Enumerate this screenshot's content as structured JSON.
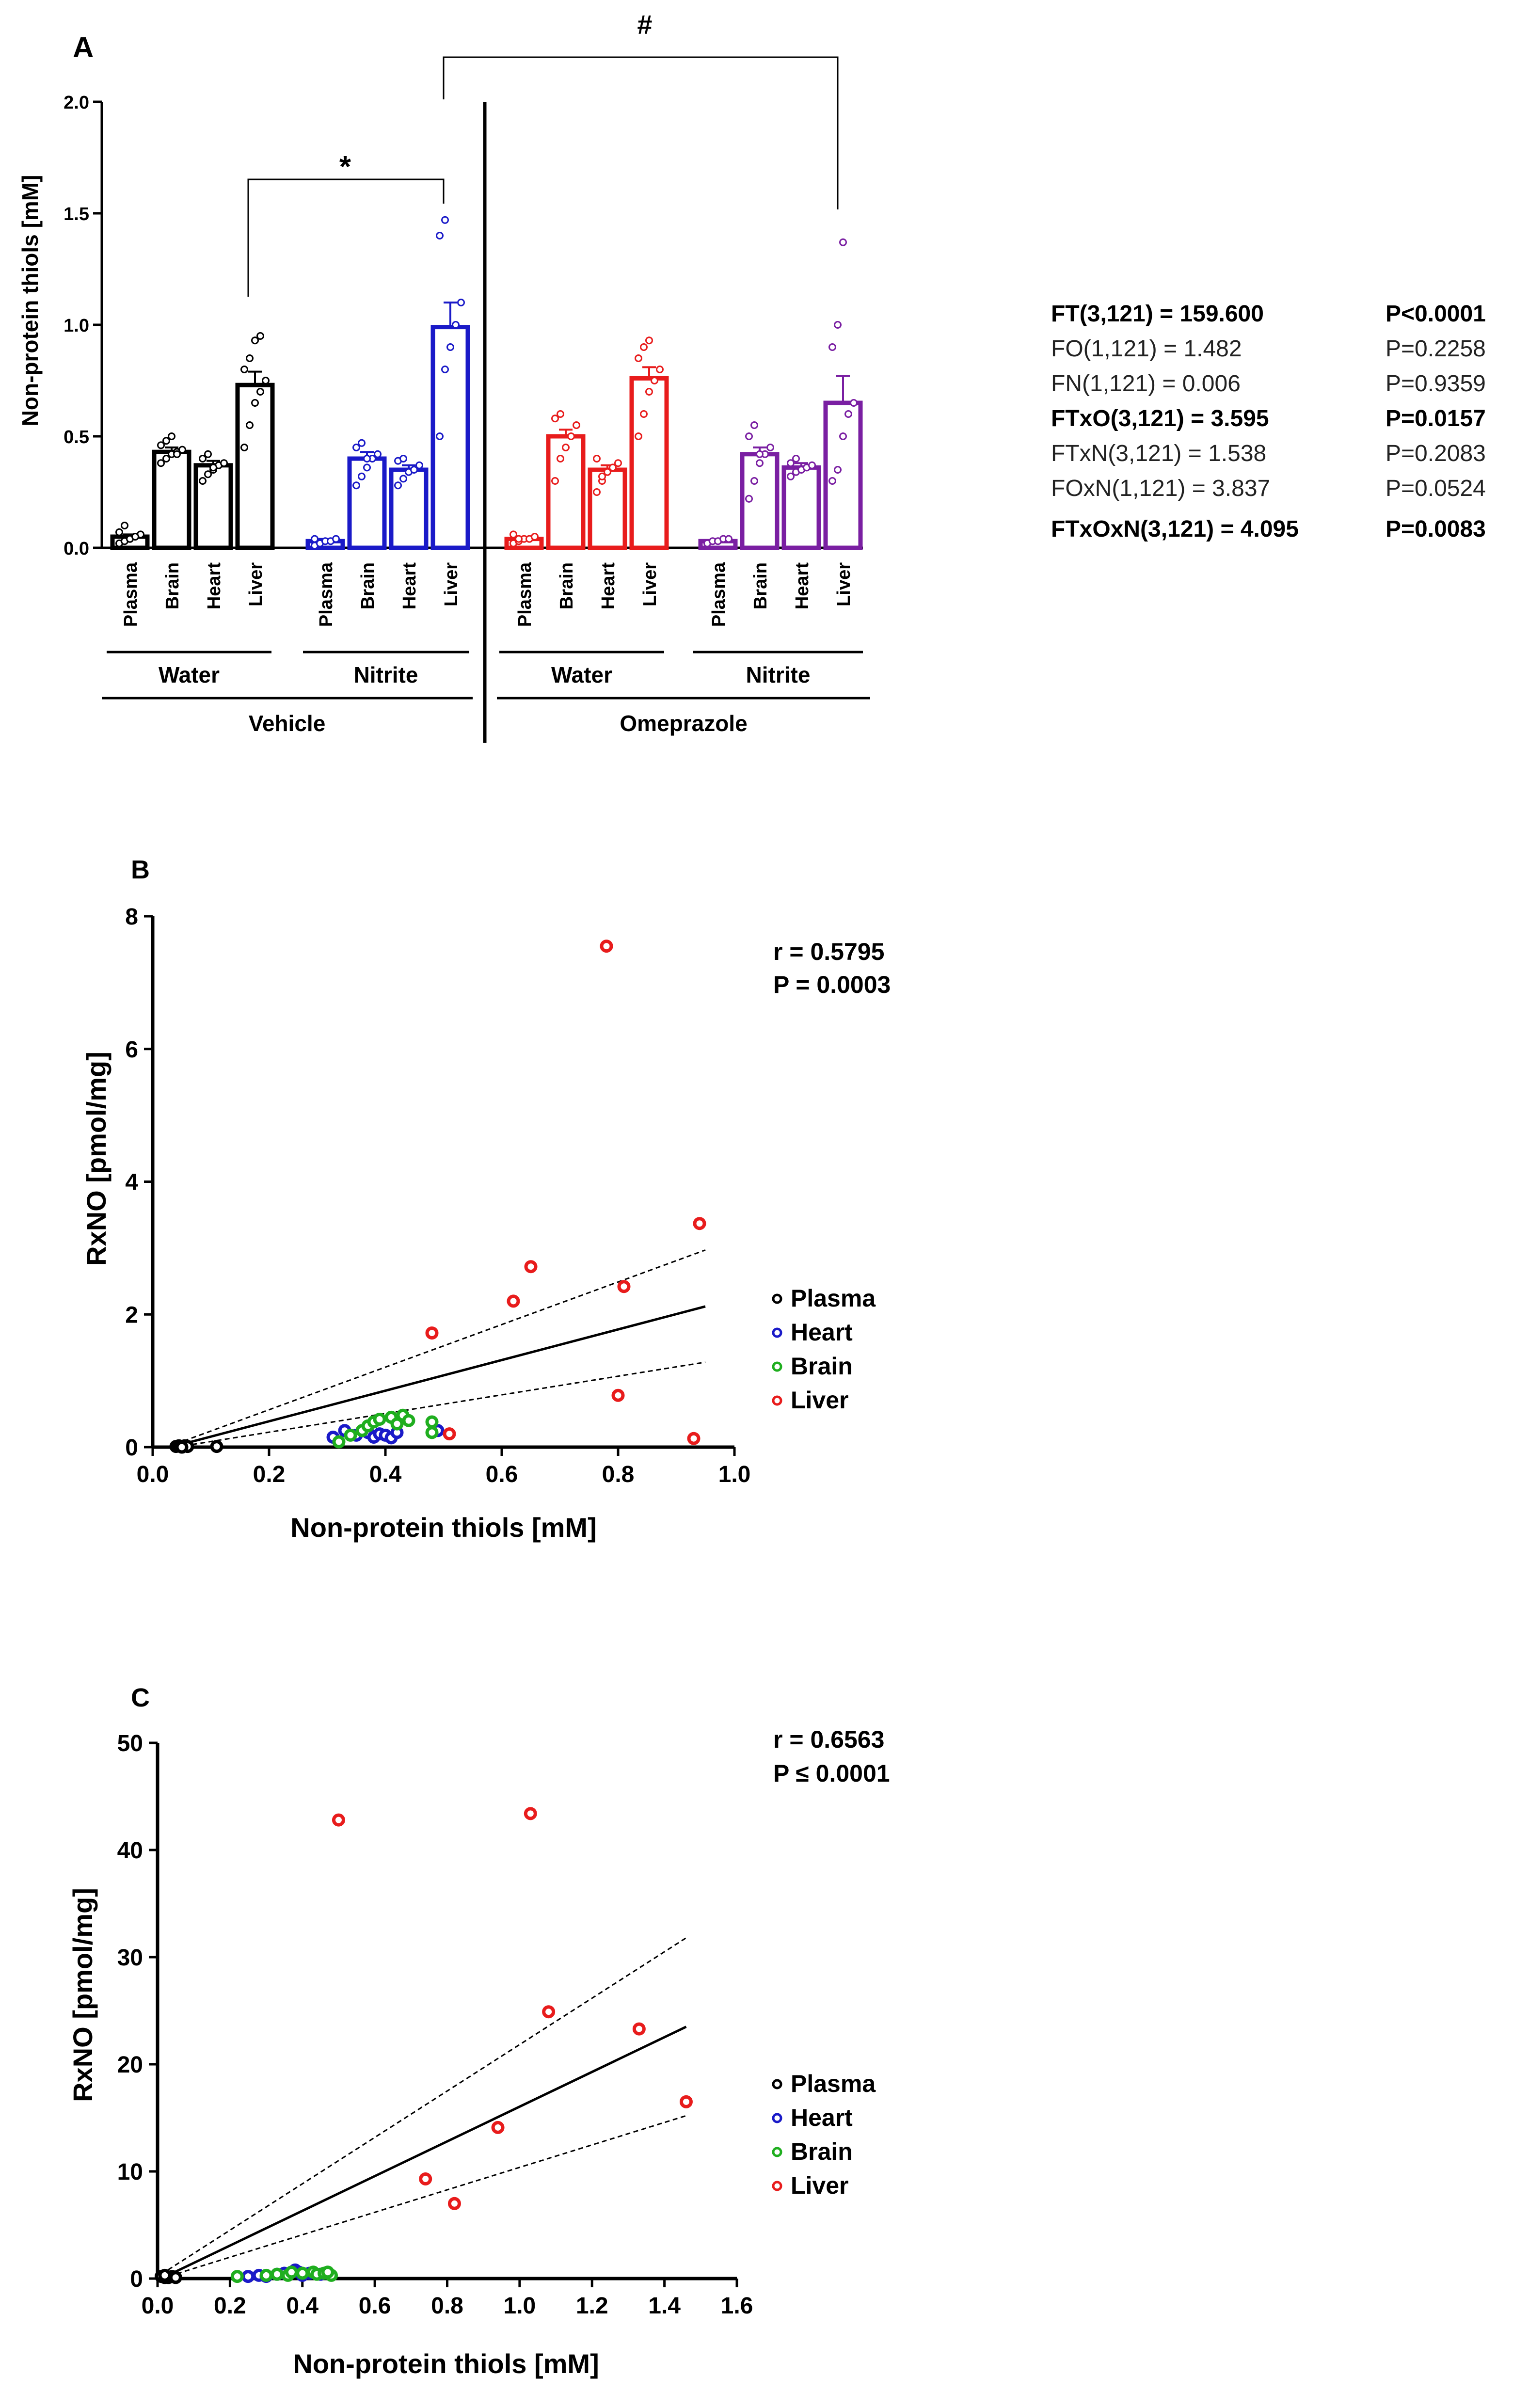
{
  "panelA": {
    "label": "A",
    "ylabel": "Non-protein thiols [mM]",
    "yticks": [
      "0.0",
      "0.5",
      "1.0",
      "1.5",
      "2.0"
    ],
    "ylim": [
      0,
      2.0
    ],
    "tissues": [
      "Plasma",
      "Brain",
      "Heart",
      "Liver"
    ],
    "groups": [
      {
        "name": "vehicle-water",
        "color": "#000000",
        "means": [
          0.05,
          0.43,
          0.37,
          0.73
        ],
        "sem": [
          0.01,
          0.02,
          0.02,
          0.06
        ],
        "points": [
          [
            0.02,
            0.03,
            0.04,
            0.05,
            0.06,
            0.07,
            0.1,
            0.04,
            0.05
          ],
          [
            0.38,
            0.4,
            0.42,
            0.43,
            0.44,
            0.46,
            0.48,
            0.5,
            0.42
          ],
          [
            0.3,
            0.33,
            0.35,
            0.37,
            0.38,
            0.4,
            0.42,
            0.36
          ],
          [
            0.45,
            0.55,
            0.65,
            0.7,
            0.75,
            0.8,
            0.85,
            0.93,
            0.95
          ]
        ]
      },
      {
        "name": "vehicle-nitrite",
        "color": "#1a1ac8",
        "means": [
          0.03,
          0.4,
          0.35,
          0.99
        ],
        "sem": [
          0.01,
          0.03,
          0.02,
          0.11
        ],
        "points": [
          [
            0.01,
            0.02,
            0.03,
            0.03,
            0.04,
            0.04
          ],
          [
            0.28,
            0.32,
            0.36,
            0.4,
            0.42,
            0.45,
            0.47,
            0.4
          ],
          [
            0.28,
            0.31,
            0.34,
            0.35,
            0.37,
            0.39,
            0.4
          ],
          [
            0.5,
            0.8,
            0.9,
            1.0,
            1.1,
            1.4,
            1.47
          ]
        ]
      },
      {
        "name": "omeprazole-water",
        "color": "#e81c1c",
        "means": [
          0.04,
          0.5,
          0.35,
          0.76
        ],
        "sem": [
          0.01,
          0.03,
          0.02,
          0.05
        ],
        "points": [
          [
            0.02,
            0.03,
            0.04,
            0.04,
            0.05,
            0.06,
            0.04
          ],
          [
            0.3,
            0.4,
            0.45,
            0.5,
            0.55,
            0.58,
            0.6
          ],
          [
            0.25,
            0.3,
            0.34,
            0.36,
            0.38,
            0.4,
            0.32
          ],
          [
            0.5,
            0.6,
            0.7,
            0.75,
            0.8,
            0.85,
            0.9,
            0.93
          ]
        ]
      },
      {
        "name": "omeprazole-nitrite",
        "color": "#7a1fa2",
        "means": [
          0.03,
          0.42,
          0.36,
          0.65
        ],
        "sem": [
          0.01,
          0.03,
          0.02,
          0.12
        ],
        "points": [
          [
            0.02,
            0.03,
            0.03,
            0.04,
            0.04
          ],
          [
            0.22,
            0.3,
            0.38,
            0.42,
            0.45,
            0.5,
            0.55,
            0.42
          ],
          [
            0.32,
            0.34,
            0.35,
            0.36,
            0.37,
            0.38,
            0.4
          ],
          [
            0.3,
            0.35,
            0.5,
            0.6,
            0.65,
            0.9,
            1.0,
            1.37
          ]
        ]
      }
    ],
    "water_label": "Water",
    "nitrite_label": "Nitrite",
    "vehicle_label": "Vehicle",
    "omeprazole_label": "Omeprazole",
    "sig_star": "*",
    "sig_hash": "#"
  },
  "stats": [
    {
      "term": "FT(3,121) = 159.600",
      "p": "P<0.0001",
      "bold": true
    },
    {
      "term": "FO(1,121) = 1.482",
      "p": "P=0.2258",
      "bold": false
    },
    {
      "term": "FN(1,121) = 0.006",
      "p": "P=0.9359",
      "bold": false
    },
    {
      "term": "FTxO(3,121) = 3.595",
      "p": "P=0.0157",
      "bold": true
    },
    {
      "term": "FTxN(3,121) = 1.538",
      "p": "P=0.2083",
      "bold": false
    },
    {
      "term": "FOxN(1,121) = 3.837",
      "p": "P=0.0524",
      "bold": false
    },
    {
      "term": "FTxOxN(3,121) = 4.095",
      "p": "P=0.0083",
      "bold": true
    }
  ],
  "chart_data": [
    {
      "type": "bar",
      "title": "A",
      "xlabel": "",
      "ylabel": "Non-protein thiols [mM]",
      "ylim": [
        0,
        2.0
      ],
      "categories": [
        "Plasma",
        "Brain",
        "Heart",
        "Liver"
      ],
      "series": [
        {
          "name": "Vehicle Water",
          "values": [
            0.05,
            0.43,
            0.37,
            0.73
          ]
        },
        {
          "name": "Vehicle Nitrite",
          "values": [
            0.03,
            0.4,
            0.35,
            0.99
          ]
        },
        {
          "name": "Omeprazole Water",
          "values": [
            0.04,
            0.5,
            0.35,
            0.76
          ]
        },
        {
          "name": "Omeprazole Nitrite",
          "values": [
            0.03,
            0.42,
            0.36,
            0.65
          ]
        }
      ]
    },
    {
      "type": "scatter",
      "title": "B",
      "xlabel": "Non-protein thiols [mM]",
      "ylabel": "RxNO [pmol/mg]",
      "xlim": [
        0,
        1.0
      ],
      "ylim": [
        0,
        8
      ],
      "xticks": [
        "0.0",
        "0.2",
        "0.4",
        "0.6",
        "0.8",
        "1.0"
      ],
      "yticks": [
        "0",
        "2",
        "4",
        "6",
        "8"
      ],
      "stat_r": "r = 0.5795",
      "stat_p": "P = 0.0003",
      "fit": {
        "x": [
          0.04,
          0.95
        ],
        "y": [
          0.02,
          2.12
        ]
      },
      "ci_upper": {
        "x": [
          0.04,
          0.95
        ],
        "y": [
          0.05,
          2.97
        ]
      },
      "ci_lower": {
        "x": [
          0.04,
          0.95
        ],
        "y": [
          0.0,
          1.28
        ]
      },
      "series": [
        {
          "name": "Plasma",
          "color": "#000000",
          "points": [
            [
              0.04,
              0.01
            ],
            [
              0.045,
              0.02
            ],
            [
              0.05,
              0.01
            ],
            [
              0.055,
              0.02
            ],
            [
              0.06,
              0.01
            ],
            [
              0.11,
              0.01
            ],
            [
              0.05,
              0.0
            ]
          ]
        },
        {
          "name": "Heart",
          "color": "#1a1ac8",
          "points": [
            [
              0.31,
              0.15
            ],
            [
              0.33,
              0.25
            ],
            [
              0.35,
              0.18
            ],
            [
              0.37,
              0.22
            ],
            [
              0.38,
              0.15
            ],
            [
              0.39,
              0.2
            ],
            [
              0.4,
              0.18
            ],
            [
              0.41,
              0.14
            ],
            [
              0.42,
              0.22
            ],
            [
              0.49,
              0.25
            ]
          ]
        },
        {
          "name": "Brain",
          "color": "#1fae1f",
          "points": [
            [
              0.32,
              0.08
            ],
            [
              0.34,
              0.18
            ],
            [
              0.36,
              0.25
            ],
            [
              0.37,
              0.32
            ],
            [
              0.38,
              0.38
            ],
            [
              0.39,
              0.42
            ],
            [
              0.41,
              0.45
            ],
            [
              0.42,
              0.35
            ],
            [
              0.43,
              0.48
            ],
            [
              0.44,
              0.4
            ],
            [
              0.48,
              0.38
            ],
            [
              0.48,
              0.22
            ]
          ]
        },
        {
          "name": "Liver",
          "color": "#e81c1c",
          "points": [
            [
              0.48,
              1.72
            ],
            [
              0.51,
              0.2
            ],
            [
              0.62,
              2.2
            ],
            [
              0.65,
              2.72
            ],
            [
              0.78,
              7.55
            ],
            [
              0.8,
              0.78
            ],
            [
              0.81,
              2.42
            ],
            [
              0.93,
              0.13
            ],
            [
              0.94,
              3.37
            ]
          ]
        }
      ]
    },
    {
      "type": "scatter",
      "title": "C",
      "xlabel": "Non-protein thiols [mM]",
      "ylabel": "RxNO [pmol/mg]",
      "xlim": [
        0,
        1.6
      ],
      "ylim": [
        0,
        50
      ],
      "xticks": [
        "0.0",
        "0.2",
        "0.4",
        "0.6",
        "0.8",
        "1.0",
        "1.2",
        "1.4",
        "1.6"
      ],
      "yticks": [
        "0",
        "10",
        "20",
        "30",
        "40",
        "50"
      ],
      "stat_r": "r = 0.6563",
      "stat_p": "P ≤ 0.0001",
      "fit": {
        "x": [
          0.01,
          1.46
        ],
        "y": [
          0.0,
          23.5
        ]
      },
      "ci_upper": {
        "x": [
          0.01,
          1.46
        ],
        "y": [
          0.4,
          31.8
        ]
      },
      "ci_lower": {
        "x": [
          0.01,
          1.46
        ],
        "y": [
          0.0,
          15.2
        ]
      },
      "series": [
        {
          "name": "Plasma",
          "color": "#000000",
          "points": [
            [
              0.01,
              0.2
            ],
            [
              0.02,
              0.1
            ],
            [
              0.03,
              0.1
            ],
            [
              0.04,
              0.2
            ],
            [
              0.05,
              0.1
            ],
            [
              0.02,
              0.3
            ]
          ]
        },
        {
          "name": "Heart",
          "color": "#1a1ac8",
          "points": [
            [
              0.25,
              0.2
            ],
            [
              0.28,
              0.3
            ],
            [
              0.3,
              0.2
            ],
            [
              0.33,
              0.4
            ],
            [
              0.35,
              0.5
            ],
            [
              0.38,
              0.8
            ],
            [
              0.39,
              0.6
            ],
            [
              0.4,
              0.3
            ],
            [
              0.42,
              0.5
            ],
            [
              0.45,
              0.4
            ]
          ]
        },
        {
          "name": "Brain",
          "color": "#1fae1f",
          "points": [
            [
              0.22,
              0.2
            ],
            [
              0.3,
              0.3
            ],
            [
              0.33,
              0.4
            ],
            [
              0.36,
              0.3
            ],
            [
              0.4,
              0.5
            ],
            [
              0.43,
              0.6
            ],
            [
              0.44,
              0.4
            ],
            [
              0.46,
              0.5
            ],
            [
              0.48,
              0.3
            ],
            [
              0.47,
              0.6
            ],
            [
              0.37,
              0.6
            ]
          ]
        },
        {
          "name": "Liver",
          "color": "#e81c1c",
          "points": [
            [
              0.5,
              42.8
            ],
            [
              0.74,
              9.3
            ],
            [
              0.82,
              7.0
            ],
            [
              0.94,
              14.1
            ],
            [
              1.03,
              43.4
            ],
            [
              1.08,
              24.9
            ],
            [
              1.33,
              23.3
            ],
            [
              1.46,
              16.5
            ]
          ]
        }
      ]
    }
  ],
  "legend": [
    "Plasma",
    "Heart",
    "Brain",
    "Liver"
  ],
  "panelB": {
    "label": "B"
  },
  "panelC": {
    "label": "C"
  }
}
